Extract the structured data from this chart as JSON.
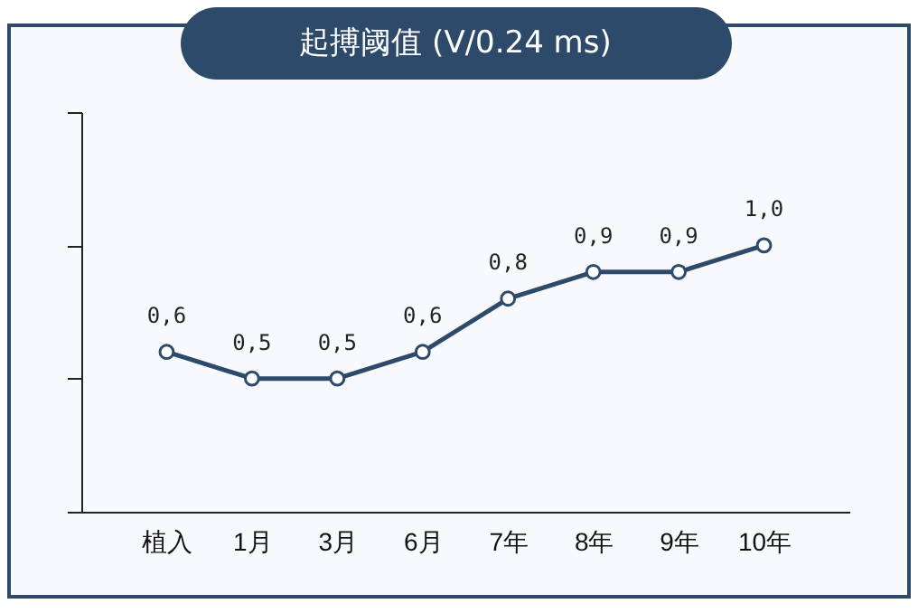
{
  "chart_data": {
    "type": "line",
    "title": "起搏阈值 (V/0.24 ms)",
    "categories": [
      "植入",
      "1月",
      "3月",
      "6月",
      "7年",
      "8年",
      "9年",
      "10年"
    ],
    "values": [
      0.6,
      0.5,
      0.5,
      0.6,
      0.8,
      0.9,
      0.9,
      1.0
    ],
    "value_labels": [
      "0,6",
      "0,5",
      "0,5",
      "0,6",
      "0,8",
      "0,9",
      "0,9",
      "1,0"
    ],
    "color": "#2e4a6b",
    "marker": "circle",
    "tick_labels": "x"
  }
}
